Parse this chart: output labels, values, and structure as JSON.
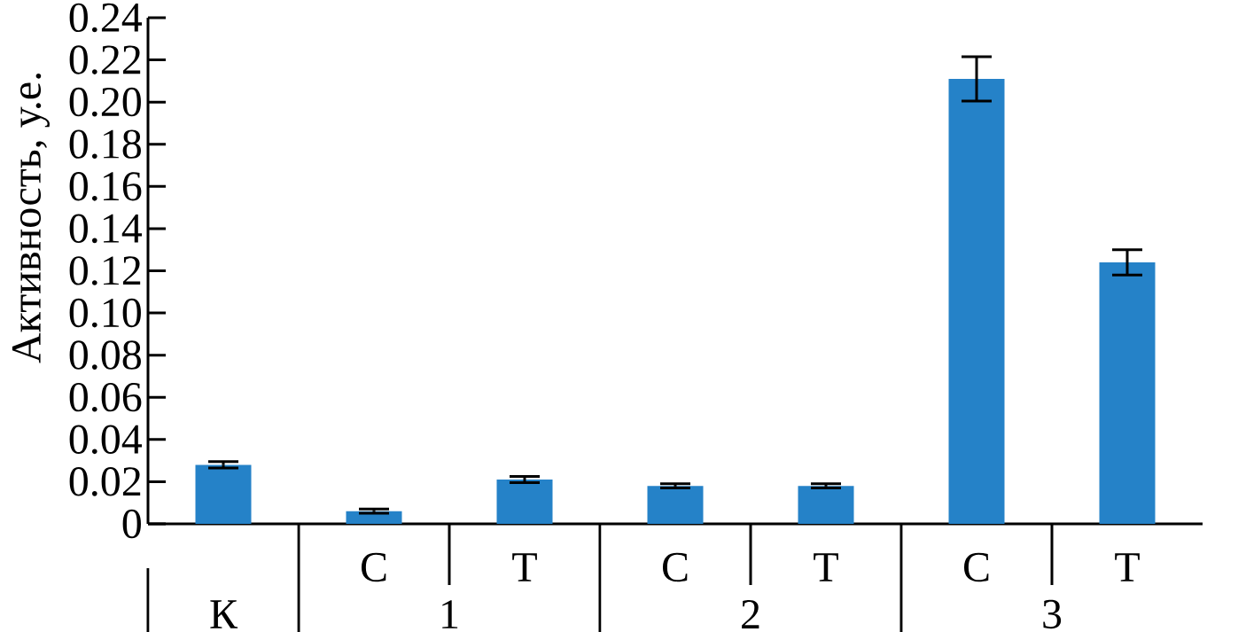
{
  "chart_data": {
    "type": "bar",
    "ylabel": "Активность, у.е.",
    "categories": [
      null,
      "С",
      "Т",
      "С",
      "Т",
      "С",
      "Т"
    ],
    "values": [
      0.028,
      0.006,
      0.021,
      0.018,
      0.018,
      0.211,
      0.124
    ],
    "errors": [
      0.0015,
      0.001,
      0.0015,
      0.001,
      0.001,
      0.0105,
      0.006
    ],
    "color": "#2582c8",
    "ylim": [
      0,
      0.24
    ],
    "yticks": [
      0,
      0.02,
      0.04,
      0.06,
      0.08,
      {
        "value": 0.1,
        "label": "0.10"
      },
      0.12,
      0.14,
      0.16,
      0.18,
      {
        "value": 0.2,
        "label": "0.20"
      },
      0.22,
      0.24
    ],
    "annotations": [
      "К",
      "1",
      "2",
      "3"
    ],
    "grid": false
  }
}
